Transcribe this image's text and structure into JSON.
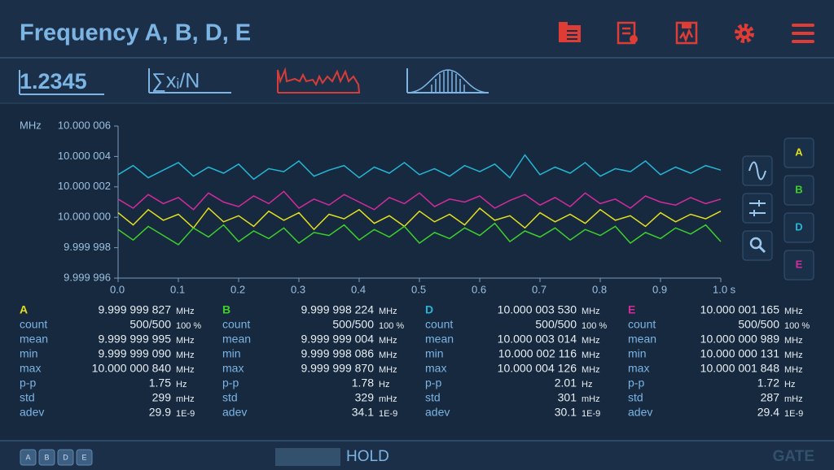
{
  "header": {
    "title": "Frequency A, B, D, E"
  },
  "toolbar": {
    "value_display": "1.2345",
    "mean_label": "∑xᵢ/N"
  },
  "chart_data": {
    "type": "line",
    "y_unit": "MHz",
    "x": [
      0,
      0.025,
      0.05,
      0.075,
      0.1,
      0.125,
      0.15,
      0.175,
      0.2,
      0.225,
      0.25,
      0.275,
      0.3,
      0.325,
      0.35,
      0.375,
      0.4,
      0.425,
      0.45,
      0.475,
      0.5,
      0.525,
      0.55,
      0.575,
      0.6,
      0.625,
      0.65,
      0.675,
      0.7,
      0.725,
      0.75,
      0.775,
      0.8,
      0.825,
      0.85,
      0.875,
      0.9,
      0.925,
      0.95,
      0.975,
      1
    ],
    "xlim": [
      0,
      1
    ],
    "xticks": [
      {
        "value": 0,
        "label": "0.0"
      },
      {
        "value": 0.1,
        "label": "0.1"
      },
      {
        "value": 0.2,
        "label": "0.2"
      },
      {
        "value": 0.3,
        "label": "0.3"
      },
      {
        "value": 0.4,
        "label": "0.4"
      },
      {
        "value": 0.5,
        "label": "0.5"
      },
      {
        "value": 0.6,
        "label": "0.6"
      },
      {
        "value": 0.7,
        "label": "0.7"
      },
      {
        "value": 0.8,
        "label": "0.8"
      },
      {
        "value": 0.9,
        "label": "0.9"
      },
      {
        "value": 1,
        "label": "1.0 s"
      }
    ],
    "ylim": [
      9.999996,
      10.000006
    ],
    "yticks": [
      {
        "value": 9.999996,
        "label": "9.999 996"
      },
      {
        "value": 9.999998,
        "label": "9.999 998"
      },
      {
        "value": 10,
        "label": "10.000 000"
      },
      {
        "value": 10.000002,
        "label": "10.000 002"
      },
      {
        "value": 10.000004,
        "label": "10.000 004"
      },
      {
        "value": 10.000006,
        "label": "10.000 006"
      }
    ],
    "series": [
      {
        "name": "A",
        "color": "#e4df1e",
        "values": [
          10.0000003,
          9.9999995,
          10.0000005,
          9.9999998,
          10.0000002,
          9.9999993,
          10.0000006,
          9.9999997,
          10.0000001,
          9.9999994,
          10.0000004,
          9.9999998,
          10.0000003,
          9.9999992,
          10.0000002,
          9.9999999,
          10.0000005,
          9.9999996,
          10.0000001,
          9.9999994,
          10.0000004,
          9.9999997,
          10.0000002,
          9.9999995,
          10.0000006,
          9.9999998,
          10.0000001,
          9.9999993,
          10.0000003,
          9.9999997,
          10.0000002,
          9.9999996,
          10.0000005,
          9.9999998,
          10.0000001,
          9.9999994,
          10.0000003,
          9.9999997,
          10.0000002,
          9.9999999,
          10.0000004
        ]
      },
      {
        "name": "B",
        "color": "#3fcf2c",
        "values": [
          9.9999992,
          9.9999985,
          9.9999994,
          9.9999988,
          9.9999982,
          9.9999993,
          9.9999987,
          9.9999995,
          9.9999984,
          9.9999991,
          9.9999986,
          9.9999993,
          9.9999983,
          9.999999,
          9.9999988,
          9.9999995,
          9.9999985,
          9.9999992,
          9.9999987,
          9.9999994,
          9.9999983,
          9.999999,
          9.9999986,
          9.9999993,
          9.9999988,
          9.9999996,
          9.9999984,
          9.9999991,
          9.9999987,
          9.9999993,
          9.9999985,
          9.9999992,
          9.9999988,
          9.9999994,
          9.9999983,
          9.999999,
          9.9999986,
          9.9999993,
          9.9999989,
          9.9999995,
          9.9999984
        ]
      },
      {
        "name": "D",
        "color": "#24b6d6",
        "values": [
          10.0000028,
          10.0000034,
          10.0000026,
          10.0000031,
          10.0000036,
          10.0000027,
          10.0000033,
          10.0000029,
          10.0000035,
          10.0000025,
          10.0000032,
          10.000003,
          10.0000037,
          10.0000027,
          10.0000031,
          10.0000034,
          10.0000026,
          10.0000033,
          10.0000029,
          10.0000036,
          10.0000028,
          10.0000032,
          10.0000027,
          10.0000034,
          10.000003,
          10.0000035,
          10.0000026,
          10.0000041,
          10.0000028,
          10.0000033,
          10.0000029,
          10.0000036,
          10.0000027,
          10.0000032,
          10.000003,
          10.0000037,
          10.0000028,
          10.0000033,
          10.0000029,
          10.0000034,
          10.0000031
        ]
      },
      {
        "name": "E",
        "color": "#d42a9e",
        "values": [
          10.0000012,
          10.0000006,
          10.0000015,
          10.0000009,
          10.0000013,
          10.0000005,
          10.0000016,
          10.000001,
          10.0000007,
          10.0000014,
          10.0000009,
          10.0000017,
          10.0000006,
          10.0000012,
          10.0000008,
          10.0000015,
          10.000001,
          10.0000005,
          10.0000013,
          10.0000009,
          10.0000016,
          10.0000007,
          10.0000012,
          10.000001,
          10.0000014,
          10.0000006,
          10.0000011,
          10.0000015,
          10.0000008,
          10.0000013,
          10.0000007,
          10.0000016,
          10.0000009,
          10.0000012,
          10.0000006,
          10.0000014,
          10.000001,
          10.0000008,
          10.0000013,
          10.0000009,
          10.0000012
        ]
      }
    ]
  },
  "stats": [
    {
      "channel": "A",
      "color": "#e4df1e",
      "value": "9.999 999 827",
      "unit": "MHz",
      "rows": [
        {
          "label": "count",
          "value": "500/500",
          "unit": "100 %"
        },
        {
          "label": "mean",
          "value": "9.999 999 995",
          "unit": "MHz"
        },
        {
          "label": "min",
          "value": "9.999 999 090",
          "unit": "MHz"
        },
        {
          "label": "max",
          "value": "10.000 000 840",
          "unit": "MHz"
        },
        {
          "label": "p-p",
          "value": "1.75",
          "unit": "Hz"
        },
        {
          "label": "std",
          "value": "299",
          "unit": "mHz"
        },
        {
          "label": "adev",
          "value": "29.9",
          "unit": "1E-9"
        }
      ]
    },
    {
      "channel": "B",
      "color": "#3fcf2c",
      "value": "9.999 998 224",
      "unit": "MHz",
      "rows": [
        {
          "label": "count",
          "value": "500/500",
          "unit": "100 %"
        },
        {
          "label": "mean",
          "value": "9.999 999 004",
          "unit": "MHz"
        },
        {
          "label": "min",
          "value": "9.999 998 086",
          "unit": "MHz"
        },
        {
          "label": "max",
          "value": "9.999 999 870",
          "unit": "MHz"
        },
        {
          "label": "p-p",
          "value": "1.78",
          "unit": "Hz"
        },
        {
          "label": "std",
          "value": "329",
          "unit": "mHz"
        },
        {
          "label": "adev",
          "value": "34.1",
          "unit": "1E-9"
        }
      ]
    },
    {
      "channel": "D",
      "color": "#24b6d6",
      "value": "10.000 003 530",
      "unit": "MHz",
      "rows": [
        {
          "label": "count",
          "value": "500/500",
          "unit": "100 %"
        },
        {
          "label": "mean",
          "value": "10.000 003 014",
          "unit": "MHz"
        },
        {
          "label": "min",
          "value": "10.000 002 116",
          "unit": "MHz"
        },
        {
          "label": "max",
          "value": "10.000 004 126",
          "unit": "MHz"
        },
        {
          "label": "p-p",
          "value": "2.01",
          "unit": "Hz"
        },
        {
          "label": "std",
          "value": "301",
          "unit": "mHz"
        },
        {
          "label": "adev",
          "value": "30.1",
          "unit": "1E-9"
        }
      ]
    },
    {
      "channel": "E",
      "color": "#d42a9e",
      "value": "10.000 001 165",
      "unit": "MHz",
      "rows": [
        {
          "label": "count",
          "value": "500/500",
          "unit": "100 %"
        },
        {
          "label": "mean",
          "value": "10.000 000 989",
          "unit": "MHz"
        },
        {
          "label": "min",
          "value": "10.000 000 131",
          "unit": "MHz"
        },
        {
          "label": "max",
          "value": "10.000 001 848",
          "unit": "MHz"
        },
        {
          "label": "p-p",
          "value": "1.72",
          "unit": "Hz"
        },
        {
          "label": "std",
          "value": "287",
          "unit": "mHz"
        },
        {
          "label": "adev",
          "value": "29.4",
          "unit": "1E-9"
        }
      ]
    }
  ],
  "footer": {
    "channels": [
      "A",
      "B",
      "D",
      "E"
    ],
    "hold": "HOLD",
    "gate": "GATE"
  }
}
